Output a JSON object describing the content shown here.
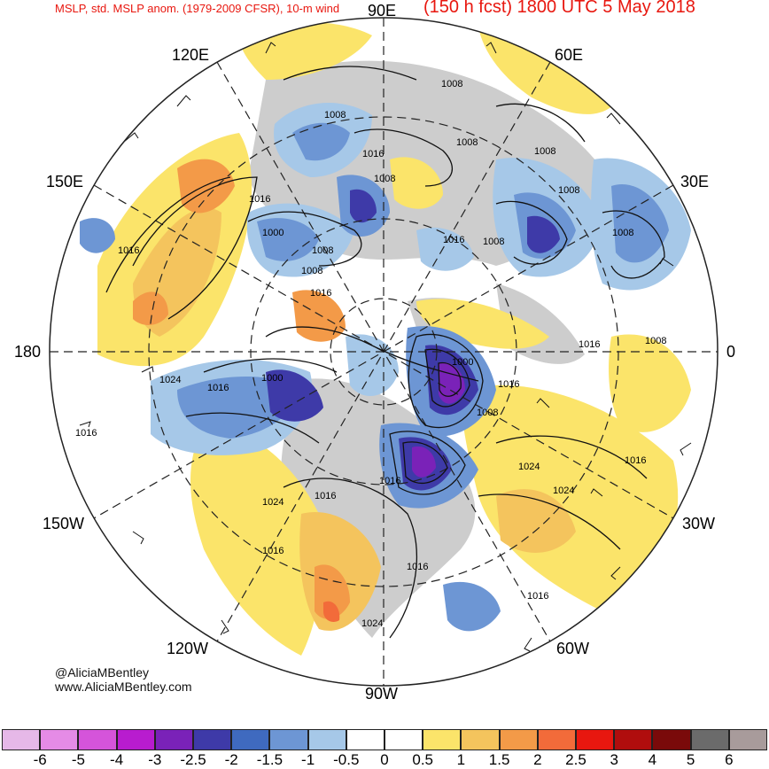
{
  "header": {
    "left_title": "MSLP, std. MSLP anom. (1979-2009 CFSR), 10-m wind",
    "right_title": "(150 h fcst) 1800 UTC 5 May 2018"
  },
  "lon_labels": {
    "l90e": "90E",
    "l60e": "60E",
    "l120e": "120E",
    "l30e": "30E",
    "l150e": "150E",
    "l180": "180",
    "l0": "0",
    "l150w": "150W",
    "l30w": "30W",
    "l120w": "120W",
    "l60w": "60W",
    "l90w": "90W"
  },
  "credit": {
    "handle": "@AliciaMBentley",
    "site": "www.AliciaMBentley.com"
  },
  "isobar_labels": [
    "1008",
    "1008",
    "1008",
    "1008",
    "1008",
    "1008",
    "1008",
    "1008",
    "1008",
    "1008",
    "1008",
    "1016",
    "1016",
    "1016",
    "1016",
    "1016",
    "1016",
    "1016",
    "1016",
    "1016",
    "1016",
    "1016",
    "1016",
    "1016",
    "1016",
    "1016",
    "1000",
    "1000",
    "1000",
    "1008",
    "1024",
    "1024",
    "1024",
    "1024",
    "1024"
  ],
  "colorbar": {
    "colors": [
      "#e6b8e8",
      "#e58be6",
      "#d554da",
      "#b81ccf",
      "#7a22b8",
      "#3e3aa8",
      "#3f6abf",
      "#6d96d4",
      "#a6c8e8",
      "#ffffff",
      "#ffffff",
      "#fbe46a",
      "#f4c45d",
      "#f39a48",
      "#f26b3a",
      "#e8170f",
      "#b00d0d",
      "#7a0a0a",
      "#6b6b6b",
      "#a89b9b"
    ],
    "ticks": [
      "-6",
      "-5",
      "-4",
      "-3",
      "-2.5",
      "-2",
      "-1.5",
      "-1",
      "-0.5",
      "0",
      "0.5",
      "1",
      "1.5",
      "2",
      "2.5",
      "3",
      "4",
      "5",
      "6"
    ]
  },
  "map_colors": {
    "land": "#cdcdcd",
    "neg_light": "#a6c8e8",
    "neg_mid": "#6d96d4",
    "neg_dark": "#3e3aa8",
    "neg_purple": "#7a22b8",
    "pos_light": "#fbe46a",
    "pos_mid": "#f4c45d",
    "pos_orange": "#f39a48",
    "pos_red": "#f26b3a"
  }
}
